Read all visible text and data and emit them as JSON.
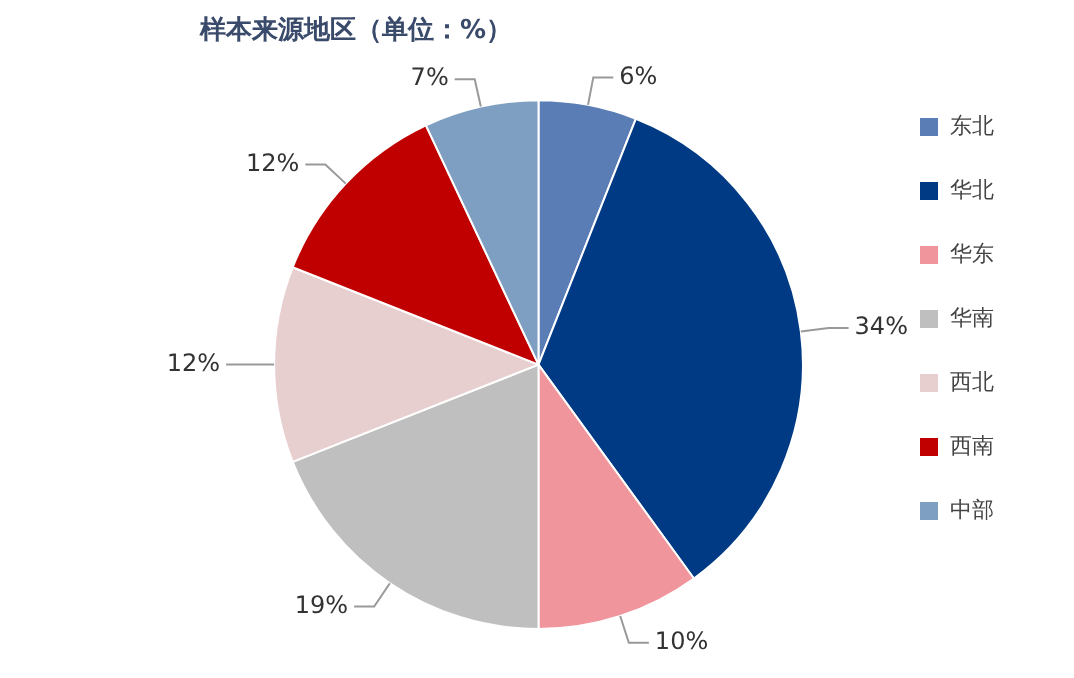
{
  "chart_data": {
    "type": "pie",
    "title": "样本来源地区（单位：%）",
    "categories": [
      "东北",
      "华北",
      "华东",
      "华南",
      "西北",
      "西南",
      "中部"
    ],
    "values": [
      6,
      34,
      10,
      19,
      12,
      12,
      7
    ],
    "colors": [
      "#5b7db5",
      "#003a84",
      "#f0959c",
      "#bfbfbf",
      "#e8cfcf",
      "#c00000",
      "#7f9fc2"
    ],
    "value_labels": [
      "6%",
      "34%",
      "10%",
      "19%",
      "12%",
      "12%",
      "7%"
    ],
    "legend": "right"
  }
}
